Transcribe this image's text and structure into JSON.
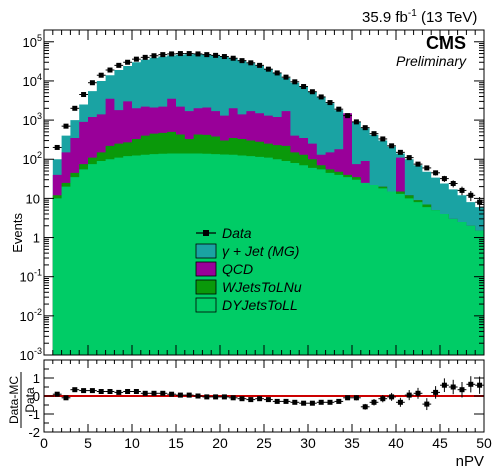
{
  "header": {
    "lumi_label": "35.9 fb",
    "lumi_exp": "-1",
    "energy_label": "(13 TeV)",
    "experiment": "CMS",
    "status": "Preliminary"
  },
  "colors": {
    "gamma_jet": "#1aa3a3",
    "qcd": "#990099",
    "wjets": "#0a990a",
    "dyjets": "#00cc66",
    "data": "#000000",
    "ratio_line": "#cc0000"
  },
  "chart_data": [
    {
      "type": "area",
      "stacking": "stacked histogram",
      "xlabel": "",
      "ylabel": "Events",
      "x_range": [
        0,
        50
      ],
      "y_range": [
        0.001,
        200000
      ],
      "y_scale": "log",
      "y_tick_labels": [
        {
          "v": 0.001,
          "m": "10",
          "e": "-3"
        },
        {
          "v": 0.01,
          "m": "10",
          "e": "-2"
        },
        {
          "v": 0.1,
          "m": "10",
          "e": "-1"
        },
        {
          "v": 1,
          "m": "1",
          "e": ""
        },
        {
          "v": 10,
          "m": "10",
          "e": ""
        },
        {
          "v": 100,
          "m": "10",
          "e": "2"
        },
        {
          "v": 1000,
          "m": "10",
          "e": "3"
        },
        {
          "v": 10000,
          "m": "10",
          "e": "4"
        },
        {
          "v": 100000,
          "m": "10",
          "e": "5"
        }
      ],
      "bin_edges": [
        1,
        2,
        3,
        4,
        5,
        6,
        7,
        8,
        9,
        10,
        11,
        12,
        13,
        14,
        15,
        16,
        17,
        18,
        19,
        20,
        21,
        22,
        23,
        24,
        25,
        26,
        27,
        28,
        29,
        30,
        31,
        32,
        33,
        34,
        35,
        36,
        37,
        38,
        39,
        40,
        41,
        42,
        43,
        44,
        45,
        46,
        47,
        48,
        49,
        50
      ],
      "series": [
        {
          "name": "DYJetsToLL",
          "color_key": "dyjets",
          "stack_top": [
            10,
            20,
            35,
            55,
            75,
            90,
            100,
            110,
            120,
            125,
            130,
            135,
            138,
            140,
            140,
            140,
            140,
            138,
            135,
            132,
            130,
            125,
            120,
            115,
            110,
            100,
            90,
            80,
            70,
            60,
            55,
            45,
            40,
            35,
            30,
            25,
            22,
            18,
            15,
            13,
            10,
            8,
            6,
            5,
            4,
            3,
            2.5,
            2,
            1.5
          ]
        },
        {
          "name": "WJetsToLNu",
          "color_key": "wjets",
          "stack_top": [
            12,
            25,
            45,
            75,
            110,
            150,
            220,
            250,
            270,
            330,
            400,
            450,
            470,
            500,
            430,
            330,
            430,
            420,
            380,
            300,
            350,
            330,
            300,
            280,
            250,
            230,
            220,
            150,
            130,
            100,
            70,
            55,
            48,
            40,
            35,
            15,
            20,
            20,
            6,
            15,
            12,
            9,
            7,
            5,
            4,
            3,
            2.5,
            2,
            1.5
          ]
        },
        {
          "name": "QCD",
          "color_key": "qcd",
          "stack_top": [
            40,
            150,
            350,
            900,
            1200,
            1400,
            3500,
            1800,
            3000,
            2000,
            2200,
            2100,
            2200,
            3500,
            2200,
            1700,
            2000,
            2100,
            1700,
            1300,
            2000,
            1400,
            1700,
            1500,
            1300,
            1200,
            1700,
            400,
            350,
            250,
            130,
            150,
            180,
            1500,
            75,
            90,
            20,
            20,
            15,
            110,
            12,
            9,
            7,
            5,
            4,
            3,
            2.5,
            2,
            1.5
          ]
        },
        {
          "name": "γ + Jet (MG)",
          "color_key": "gamma_jet",
          "stack_top": [
            100,
            400,
            1000,
            2500,
            5500,
            10000,
            14000,
            19000,
            24000,
            30000,
            35000,
            39000,
            42000,
            45000,
            47000,
            48000,
            48000,
            47000,
            45000,
            42000,
            38000,
            33000,
            28000,
            24000,
            20000,
            16000,
            12000,
            9000,
            7000,
            5200,
            3800,
            2700,
            1800,
            1300,
            900,
            620,
            420,
            300,
            210,
            140,
            100,
            70,
            48,
            34,
            24,
            17,
            12,
            8,
            6
          ]
        }
      ],
      "data_points": {
        "name": "Data",
        "x": [
          1.5,
          2.5,
          3.5,
          4.5,
          5.5,
          6.5,
          7.5,
          8.5,
          9.5,
          10.5,
          11.5,
          12.5,
          13.5,
          14.5,
          15.5,
          16.5,
          17.5,
          18.5,
          19.5,
          20.5,
          21.5,
          22.5,
          23.5,
          24.5,
          25.5,
          26.5,
          27.5,
          28.5,
          29.5,
          30.5,
          31.5,
          32.5,
          33.5,
          34.5,
          35.5,
          36.5,
          37.5,
          38.5,
          39.5,
          40.5,
          41.5,
          42.5,
          43.5,
          44.5,
          45.5,
          46.5,
          47.5,
          48.5,
          49.5
        ],
        "y": [
          200,
          700,
          2000,
          4500,
          9000,
          14000,
          19000,
          25000,
          30000,
          36000,
          40000,
          44000,
          47000,
          49000,
          50000,
          50000,
          49000,
          47000,
          45000,
          42000,
          38000,
          33000,
          29000,
          25000,
          20000,
          16000,
          12500,
          9500,
          7200,
          5300,
          3900,
          2800,
          1900,
          1300,
          900,
          640,
          450,
          330,
          220,
          150,
          110,
          75,
          60,
          45,
          32,
          24,
          16,
          12,
          8
        ]
      },
      "legend": [
        "Data",
        "γ + Jet (MG)",
        "QCD",
        "WJetsToLNu",
        "DYJetsToLL"
      ],
      "legend_position": "center-left"
    },
    {
      "type": "scatter",
      "xlabel": "nPV",
      "ylabel": "Data-MC / Data",
      "x_range": [
        0,
        50
      ],
      "y_range": [
        -2,
        2
      ],
      "x_ticks": [
        0,
        5,
        10,
        15,
        20,
        25,
        30,
        35,
        40,
        45,
        50
      ],
      "y_ticks": [
        -2,
        -1,
        0,
        1
      ],
      "reference_line": 0,
      "x": [
        1.5,
        2.5,
        3.5,
        4.5,
        5.5,
        6.5,
        7.5,
        8.5,
        9.5,
        10.5,
        11.5,
        12.5,
        13.5,
        14.5,
        15.5,
        16.5,
        17.5,
        18.5,
        19.5,
        20.5,
        21.5,
        22.5,
        23.5,
        24.5,
        25.5,
        26.5,
        27.5,
        28.5,
        29.5,
        30.5,
        31.5,
        32.5,
        33.5,
        34.5,
        35.5,
        36.5,
        37.5,
        38.5,
        39.5,
        40.5,
        41.5,
        42.5,
        43.5,
        44.5,
        45.5,
        46.5,
        47.5,
        48.5,
        49.5
      ],
      "y": [
        0.1,
        -0.1,
        0.35,
        0.3,
        0.3,
        0.25,
        0.25,
        0.2,
        0.25,
        0.25,
        0.15,
        0.15,
        0.15,
        0.1,
        0.05,
        0.05,
        0.0,
        -0.05,
        -0.05,
        -0.05,
        -0.1,
        -0.15,
        -0.2,
        -0.15,
        -0.2,
        -0.3,
        -0.3,
        -0.35,
        -0.4,
        -0.4,
        -0.35,
        -0.35,
        -0.3,
        -0.1,
        -0.1,
        -0.6,
        -0.35,
        -0.15,
        -0.05,
        -0.35,
        0.05,
        0.15,
        -0.45,
        0.2,
        0.6,
        0.5,
        0.35,
        0.65,
        0.6
      ],
      "yerr": [
        0.05,
        0.12,
        0.06,
        0.05,
        0.04,
        0.03,
        0.03,
        0.03,
        0.03,
        0.03,
        0.03,
        0.03,
        0.03,
        0.03,
        0.03,
        0.03,
        0.03,
        0.03,
        0.03,
        0.03,
        0.03,
        0.03,
        0.03,
        0.03,
        0.03,
        0.04,
        0.04,
        0.05,
        0.05,
        0.06,
        0.07,
        0.08,
        0.1,
        0.12,
        0.14,
        0.16,
        0.18,
        0.2,
        0.22,
        0.25,
        0.28,
        0.3,
        0.33,
        0.35,
        0.38,
        0.4,
        0.43,
        0.45,
        0.48
      ]
    }
  ]
}
